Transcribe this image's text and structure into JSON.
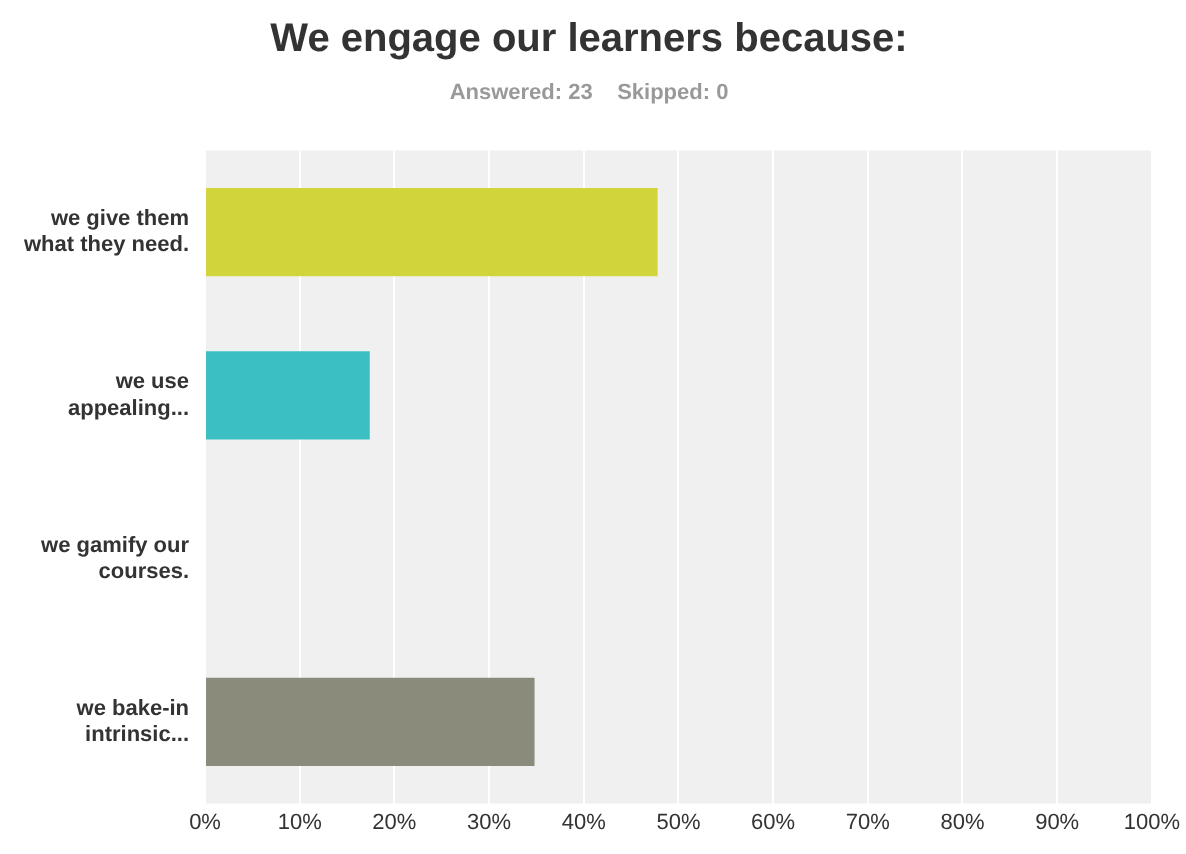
{
  "chart_data": {
    "type": "bar",
    "orientation": "horizontal",
    "title": "We engage our learners because:",
    "subtitle": "Answered: 23    Skipped: 0",
    "categories": [
      "we give them what they need.",
      "we use appealing...",
      "we gamify our courses.",
      "we bake-in intrinsic..."
    ],
    "values": [
      47.8,
      17.4,
      0,
      34.8
    ],
    "colors": [
      "#d2d53a",
      "#3bbfc3",
      "#e8843a",
      "#8b8b7b"
    ],
    "xlim": [
      0,
      100
    ],
    "xticks": [
      {
        "value": 0,
        "label": "0%"
      },
      {
        "value": 10,
        "label": "10%"
      },
      {
        "value": 20,
        "label": "20%"
      },
      {
        "value": 30,
        "label": "30%"
      },
      {
        "value": 40,
        "label": "40%"
      },
      {
        "value": 50,
        "label": "50%"
      },
      {
        "value": 60,
        "label": "60%"
      },
      {
        "value": 70,
        "label": "70%"
      },
      {
        "value": 80,
        "label": "80%"
      },
      {
        "value": 90,
        "label": "90%"
      },
      {
        "value": 100,
        "label": "100%"
      }
    ],
    "grid": "x",
    "legend": false
  }
}
